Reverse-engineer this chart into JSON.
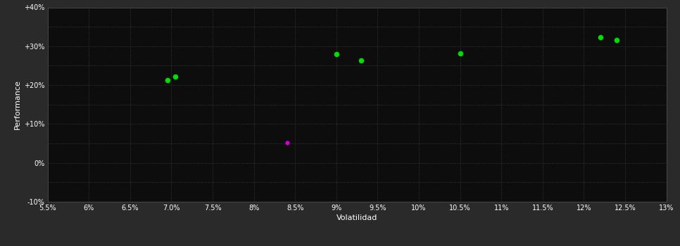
{
  "background_color": "#2a2a2a",
  "plot_bg_color": "#0d0d0d",
  "grid_color": "#404040",
  "text_color": "#ffffff",
  "xlabel": "Volatilidad",
  "ylabel": "Performance",
  "xlim": [
    0.055,
    0.13
  ],
  "ylim": [
    -0.1,
    0.4
  ],
  "xticks": [
    0.055,
    0.06,
    0.065,
    0.07,
    0.075,
    0.08,
    0.085,
    0.09,
    0.095,
    0.1,
    0.105,
    0.11,
    0.115,
    0.12,
    0.125,
    0.13
  ],
  "yticks": [
    -0.1,
    -0.05,
    0.0,
    0.05,
    0.1,
    0.15,
    0.2,
    0.25,
    0.3,
    0.35,
    0.4
  ],
  "ytick_labels": [
    "-10%",
    "",
    "0%",
    "",
    "+10%",
    "",
    "+20%",
    "",
    "+30%",
    "",
    "+40%"
  ],
  "green_points": [
    [
      0.0695,
      0.213
    ],
    [
      0.0705,
      0.222
    ],
    [
      0.09,
      0.28
    ],
    [
      0.093,
      0.264
    ],
    [
      0.105,
      0.281
    ],
    [
      0.122,
      0.323
    ],
    [
      0.124,
      0.316
    ]
  ],
  "magenta_points": [
    [
      0.084,
      0.052
    ]
  ],
  "green_color": "#00dd00",
  "magenta_color": "#cc00cc",
  "marker_size": 30
}
